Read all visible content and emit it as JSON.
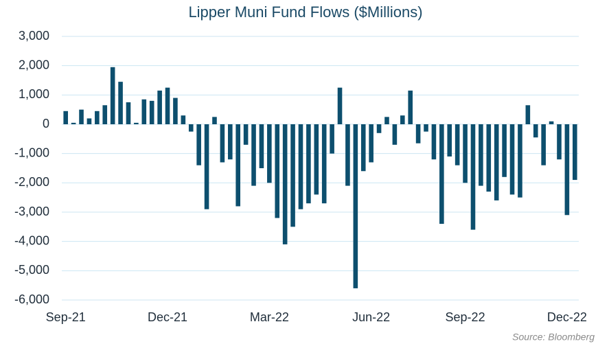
{
  "chart_data": {
    "type": "bar",
    "title": "Lipper Muni Fund Flows ($Millions)",
    "source": "Source: Bloomberg",
    "categories": [
      "Sep-21",
      null,
      null,
      null,
      null,
      null,
      null,
      null,
      null,
      null,
      null,
      null,
      null,
      "Dec-21",
      null,
      null,
      null,
      null,
      null,
      null,
      null,
      null,
      null,
      null,
      null,
      null,
      "Mar-22",
      null,
      null,
      null,
      null,
      null,
      null,
      null,
      null,
      null,
      null,
      null,
      null,
      "Jun-22",
      null,
      null,
      null,
      null,
      null,
      null,
      null,
      null,
      null,
      null,
      null,
      "Sep-22",
      null,
      null,
      null,
      null,
      null,
      null,
      null,
      null,
      null,
      null,
      null,
      null,
      "Dec-22",
      null
    ],
    "values": [
      450,
      50,
      500,
      200,
      450,
      650,
      1950,
      1450,
      750,
      50,
      850,
      800,
      1150,
      1250,
      900,
      300,
      -250,
      -1400,
      -2900,
      250,
      -1300,
      -1200,
      -2800,
      -700,
      -2100,
      -1500,
      -2000,
      -3200,
      -4100,
      -3500,
      -2900,
      -2700,
      -2400,
      -2700,
      -1000,
      1250,
      -2100,
      -5600,
      -1600,
      -1300,
      -300,
      250,
      -700,
      300,
      1150,
      -650,
      -250,
      -1200,
      -3400,
      -1100,
      -1400,
      -2000,
      -3600,
      -2100,
      -2300,
      -2600,
      -1800,
      -2400,
      -2500,
      650,
      -450,
      -1400,
      100,
      -1200,
      -3100,
      -1900
    ],
    "color": "#0d4f6e",
    "ylim": [
      -6000,
      3000
    ],
    "yticks": [
      {
        "value": -6000,
        "label": "-6,000"
      },
      {
        "value": -5000,
        "label": "-5,000"
      },
      {
        "value": -4000,
        "label": "-4,000"
      },
      {
        "value": -3000,
        "label": "-3,000"
      },
      {
        "value": -2000,
        "label": "-2,000"
      },
      {
        "value": -1000,
        "label": "-1,000"
      },
      0,
      {
        "value": 1000,
        "label": "1,000"
      },
      {
        "value": 2000,
        "label": "2,000"
      },
      {
        "value": 3000,
        "label": "3,000"
      }
    ],
    "grid": true
  }
}
